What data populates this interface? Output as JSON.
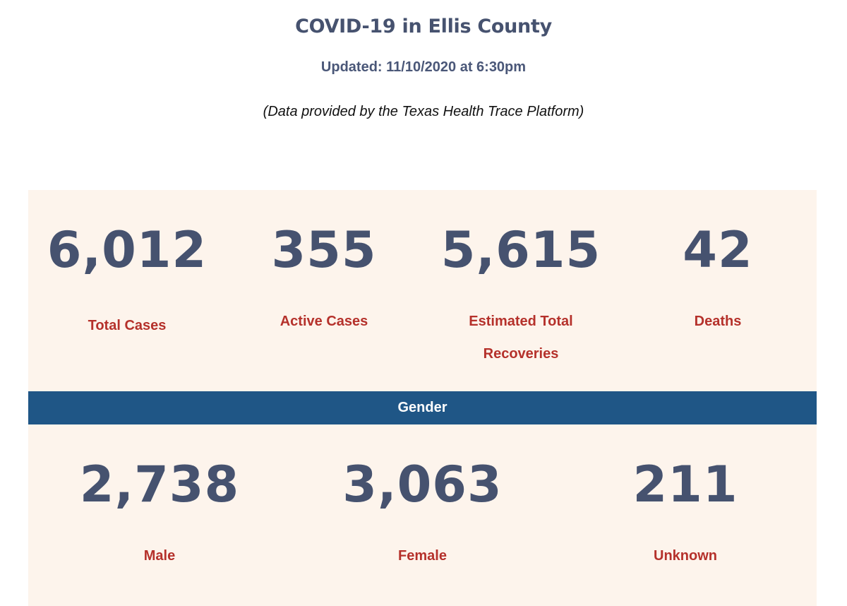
{
  "header": {
    "title": "COVID-19 in Ellis County",
    "updated": "Updated: 11/10/2020 at 6:30pm",
    "source": "(Data provided by the Texas Health Trace Platform)"
  },
  "summary": {
    "total_cases": {
      "value": "6,012",
      "label": "Total Cases"
    },
    "active_cases": {
      "value": "355",
      "label": "Active Cases"
    },
    "recoveries": {
      "value": "5,615",
      "label_line1": "Estimated Total",
      "label_line2": "Recoveries"
    },
    "deaths": {
      "value": "42",
      "label": "Deaths"
    }
  },
  "gender": {
    "heading": "Gender",
    "male": {
      "value": "2,738",
      "label": "Male"
    },
    "female": {
      "value": "3,063",
      "label": "Female"
    },
    "unknown": {
      "value": "211",
      "label": "Unknown"
    }
  },
  "colors": {
    "number": "#46526f",
    "label": "#b5312b",
    "panel_bg": "#fdf4ec",
    "gender_bar": "#1f5686"
  }
}
